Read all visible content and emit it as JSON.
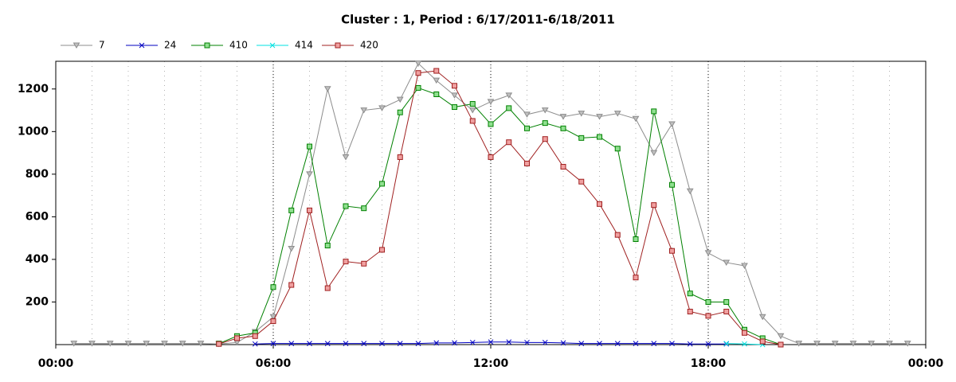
{
  "chart_data": {
    "type": "line",
    "title": "Cluster : 1, Period : 6/17/2011-6/18/2011",
    "x": [
      0.5,
      1,
      1.5,
      2,
      2.5,
      3,
      3.5,
      4,
      4.5,
      5,
      5.5,
      6,
      6.5,
      7,
      7.5,
      8,
      8.5,
      9,
      9.5,
      10,
      10.5,
      11,
      11.5,
      12,
      12.5,
      13,
      13.5,
      14,
      14.5,
      15,
      15.5,
      16,
      16.5,
      17,
      17.5,
      18,
      18.5,
      19,
      19.5,
      20,
      20.5,
      21,
      21.5,
      22,
      22.5,
      23,
      23.5
    ],
    "xlim": [
      0,
      24
    ],
    "xticks": [
      {
        "value": 0,
        "label": "00:00"
      },
      {
        "value": 6,
        "label": "06:00"
      },
      {
        "value": 12,
        "label": "12:00"
      },
      {
        "value": 18,
        "label": "18:00"
      },
      {
        "value": 24,
        "label": "00:00"
      }
    ],
    "ylim": [
      0,
      1330
    ],
    "yticks": [
      200,
      400,
      600,
      800,
      1000,
      1200
    ],
    "series": [
      {
        "name": "7",
        "color": "#8c8c8c",
        "marker": "triangle-down",
        "values": [
          5,
          5,
          5,
          5,
          5,
          5,
          5,
          5,
          3,
          10,
          60,
          130,
          450,
          800,
          1200,
          880,
          1100,
          1110,
          1150,
          1320,
          1240,
          1170,
          1100,
          1140,
          1170,
          1080,
          1100,
          1070,
          1085,
          1070,
          1085,
          1060,
          900,
          1035,
          720,
          430,
          385,
          370,
          130,
          40,
          5,
          5,
          5,
          5,
          5,
          5,
          5
        ]
      },
      {
        "name": "24",
        "color": "#0000c0",
        "marker": "x",
        "values": [
          null,
          null,
          null,
          null,
          null,
          null,
          null,
          null,
          null,
          null,
          3,
          5,
          5,
          5,
          5,
          5,
          5,
          5,
          5,
          5,
          8,
          8,
          10,
          12,
          12,
          10,
          10,
          8,
          5,
          5,
          5,
          5,
          5,
          5,
          3,
          3,
          3,
          null,
          null,
          null,
          null,
          null,
          null,
          null,
          null,
          null,
          null
        ]
      },
      {
        "name": "410",
        "color": "#008000",
        "fill": "#90e090",
        "marker": "square",
        "values": [
          null,
          null,
          null,
          null,
          null,
          null,
          null,
          null,
          5,
          40,
          55,
          270,
          630,
          930,
          465,
          650,
          640,
          755,
          1090,
          1205,
          1175,
          1115,
          1130,
          1035,
          1110,
          1015,
          1040,
          1015,
          970,
          975,
          920,
          495,
          1095,
          750,
          240,
          200,
          200,
          70,
          30,
          0,
          null,
          null,
          null,
          null,
          null,
          null,
          null
        ]
      },
      {
        "name": "414",
        "color": "#00e0e0",
        "marker": "x",
        "values": [
          null,
          null,
          null,
          null,
          null,
          null,
          null,
          null,
          null,
          null,
          null,
          null,
          null,
          null,
          null,
          null,
          null,
          null,
          null,
          null,
          null,
          null,
          null,
          null,
          null,
          null,
          null,
          null,
          null,
          null,
          null,
          null,
          null,
          null,
          null,
          null,
          5,
          3,
          0,
          null,
          null,
          null,
          null,
          null,
          null,
          null,
          null
        ]
      },
      {
        "name": "420",
        "color": "#a02020",
        "fill": "#f0a0a0",
        "marker": "square",
        "values": [
          null,
          null,
          null,
          null,
          null,
          null,
          null,
          null,
          3,
          30,
          40,
          110,
          280,
          630,
          265,
          390,
          380,
          445,
          880,
          1275,
          1285,
          1215,
          1050,
          880,
          950,
          850,
          965,
          835,
          765,
          660,
          515,
          315,
          655,
          440,
          155,
          135,
          155,
          55,
          15,
          0,
          null,
          null,
          null,
          null,
          null,
          null,
          null
        ]
      }
    ]
  }
}
